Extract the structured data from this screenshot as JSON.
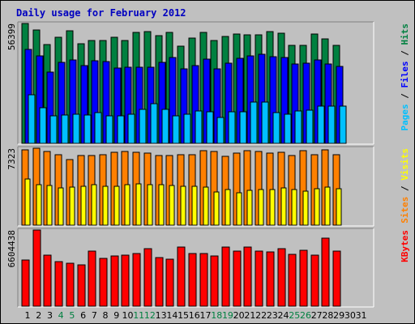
{
  "chart_data": {
    "type": "bar",
    "title": "Daily usage for February 2012",
    "categories": [
      "1",
      "2",
      "3",
      "4",
      "5",
      "6",
      "7",
      "8",
      "9",
      "10",
      "11",
      "12",
      "13",
      "14",
      "15",
      "16",
      "17",
      "18",
      "19",
      "20",
      "21",
      "22",
      "23",
      "24",
      "25",
      "26",
      "27",
      "28",
      "29",
      "30",
      "31"
    ],
    "weekend_days": [
      "4",
      "5",
      "11",
      "12",
      "18",
      "19",
      "25",
      "26"
    ],
    "colors": {
      "hits": "#008040",
      "files": "#0000ff",
      "pages": "#00c0ff",
      "visits": "#ffff00",
      "sites": "#ff8000",
      "kbytes": "#ff0000",
      "title": "#0000c0",
      "weekend_tick": "#008040",
      "weekday_tick": "#000000",
      "background": "#c0c0c0"
    },
    "panels": [
      {
        "id": "traffic",
        "max_label": "56399",
        "ylim": [
          0,
          56399
        ],
        "legend": [
          {
            "text": "Pages",
            "color": "#00c0ff"
          },
          {
            "text": " / ",
            "color": "#000000"
          },
          {
            "text": "Files",
            "color": "#0000ff"
          },
          {
            "text": " / ",
            "color": "#000000"
          },
          {
            "text": "Hits",
            "color": "#008040"
          }
        ],
        "series": [
          {
            "name": "Hits",
            "color": "#008040",
            "values": [
              56399,
              53510,
              46370,
              49960,
              52800,
              46720,
              48280,
              48280,
              50040,
              48420,
              52370,
              52600,
              50520,
              52380,
              45560,
              49350,
              52260,
              48210,
              50170,
              51490,
              51120,
              51190,
              52630,
              51920,
              46100,
              46100,
              51340,
              49230,
              46100,
              null,
              null
            ]
          },
          {
            "name": "Files",
            "color": "#0000ff",
            "values": [
              44230,
              41080,
              33440,
              38090,
              39320,
              36660,
              38730,
              38530,
              35360,
              35880,
              35920,
              36000,
              38060,
              40390,
              35200,
              36570,
              39780,
              34880,
              37550,
              39830,
              41290,
              42090,
              40630,
              40270,
              37270,
              37760,
              39130,
              37230,
              36320,
              null,
              null
            ]
          },
          {
            "name": "Pages",
            "color": "#00c0ff",
            "values": [
              22780,
              16860,
              12860,
              13470,
              13810,
              13330,
              14590,
              12840,
              12810,
              13530,
              16180,
              18650,
              15840,
              13000,
              13730,
              15060,
              14770,
              12330,
              14680,
              14790,
              19470,
              19560,
              14650,
              13820,
              15390,
              15640,
              17430,
              17340,
              17380,
              null,
              null
            ]
          }
        ]
      },
      {
        "id": "visits",
        "max_label": "7323",
        "ylim": [
          0,
          7323
        ],
        "legend": [
          {
            "text": "Sites",
            "color": "#ff8000"
          },
          {
            "text": " / ",
            "color": "#000000"
          },
          {
            "text": "Visits",
            "color": "#ffff00"
          }
        ],
        "series": [
          {
            "name": "Sites",
            "color": "#ff8000",
            "values": [
              7186,
              7323,
              6982,
              6711,
              6280,
              6631,
              6645,
              6683,
              6934,
              6991,
              6965,
              6894,
              6631,
              6657,
              6694,
              6693,
              7101,
              6981,
              6525,
              6894,
              7089,
              7045,
              6866,
              6958,
              6658,
              7103,
              6738,
              7187,
              6743,
              null,
              null
            ]
          },
          {
            "name": "Visits",
            "color": "#ffff00",
            "values": [
              4389,
              3871,
              3743,
              3510,
              3650,
              3700,
              3869,
              3686,
              3719,
              3882,
              3929,
              3851,
              3868,
              3755,
              3697,
              3691,
              3644,
              3122,
              3407,
              3100,
              3340,
              3422,
              3368,
              3559,
              3384,
              3206,
              3439,
              3650,
              3480,
              null,
              null
            ]
          }
        ]
      },
      {
        "id": "kbytes",
        "max_label": "6604438",
        "ylim": [
          0,
          6604438
        ],
        "legend": [
          {
            "text": "KBytes",
            "color": "#ff0000"
          }
        ],
        "series": [
          {
            "name": "KBytes",
            "color": "#ff0000",
            "values": [
              4010000,
              6604438,
              4460000,
              3850000,
              3700000,
              3550000,
              4810000,
              4120000,
              4370000,
              4410000,
              4550000,
              5010000,
              4250000,
              4100000,
              5120000,
              4560000,
              4550000,
              4360000,
              5140000,
              4750000,
              5130000,
              4800000,
              4700000,
              4990000,
              4520000,
              4850000,
              4410000,
              5910000,
              4750000,
              null,
              null
            ]
          }
        ]
      }
    ]
  }
}
